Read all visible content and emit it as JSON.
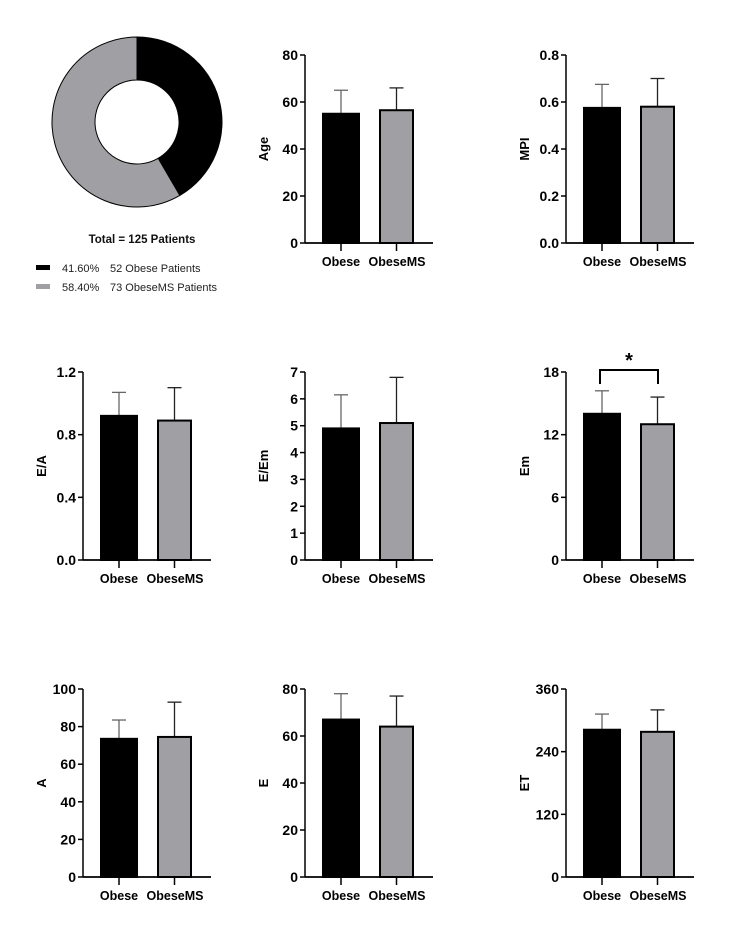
{
  "colors": {
    "obese": "#000000",
    "obeseMS": "#a0a0a4",
    "outline": "#000000"
  },
  "chart_data": [
    {
      "type": "pie",
      "style": "donut",
      "title": "Total = 125 Patients",
      "slices": [
        {
          "label": "52 Obese Patients",
          "percent_label": "41.60%",
          "value": 52,
          "color": "#000000"
        },
        {
          "label": "73 ObeseMS Patients",
          "percent_label": "58.40%",
          "value": 73,
          "color": "#a0a0a4"
        }
      ],
      "legend": "bottom-left"
    },
    {
      "type": "bar",
      "ylabel": "Age",
      "categories": [
        "Obese",
        "ObeseMS"
      ],
      "values": [
        55,
        56.5
      ],
      "error_upper": [
        65,
        66
      ],
      "ylim": [
        0,
        80
      ],
      "ticks": [
        "0",
        "20",
        "40",
        "60",
        "80"
      ],
      "tick_values": [
        0,
        20,
        40,
        60,
        80
      ]
    },
    {
      "type": "bar",
      "ylabel": "MPI",
      "categories": [
        "Obese",
        "ObeseMS"
      ],
      "values": [
        0.575,
        0.58
      ],
      "error_upper": [
        0.675,
        0.7
      ],
      "ylim": [
        0,
        0.8
      ],
      "ticks": [
        "0.0",
        "0.2",
        "0.4",
        "0.6",
        "0.8"
      ],
      "tick_values": [
        0,
        0.2,
        0.4,
        0.6,
        0.8
      ]
    },
    {
      "type": "bar",
      "ylabel": "E/A",
      "categories": [
        "Obese",
        "ObeseMS"
      ],
      "values": [
        0.92,
        0.89
      ],
      "error_upper": [
        1.07,
        1.1
      ],
      "ylim": [
        0,
        1.2
      ],
      "ticks": [
        "0.0",
        "0.4",
        "0.8",
        "1.2"
      ],
      "tick_values": [
        0,
        0.4,
        0.8,
        1.2
      ]
    },
    {
      "type": "bar",
      "ylabel": "E/Em",
      "categories": [
        "Obese",
        "ObeseMS"
      ],
      "values": [
        4.9,
        5.1
      ],
      "error_upper": [
        6.15,
        6.8
      ],
      "ylim": [
        0,
        7
      ],
      "ticks": [
        "0",
        "1",
        "2",
        "3",
        "4",
        "5",
        "6",
        "7"
      ],
      "tick_values": [
        0,
        1,
        2,
        3,
        4,
        5,
        6,
        7
      ]
    },
    {
      "type": "bar",
      "ylabel": "Em",
      "categories": [
        "Obese",
        "ObeseMS"
      ],
      "values": [
        14.0,
        13.0
      ],
      "error_upper": [
        16.2,
        15.6
      ],
      "ylim": [
        0,
        18
      ],
      "ticks": [
        "0",
        "6",
        "12",
        "18"
      ],
      "tick_values": [
        0,
        6,
        12,
        18
      ],
      "significance": "*"
    },
    {
      "type": "bar",
      "ylabel": "A",
      "categories": [
        "Obese",
        "ObeseMS"
      ],
      "values": [
        73.5,
        74.5
      ],
      "error_upper": [
        83.5,
        93
      ],
      "ylim": [
        0,
        100
      ],
      "ticks": [
        "0",
        "20",
        "40",
        "60",
        "80",
        "100"
      ],
      "tick_values": [
        0,
        20,
        40,
        60,
        80,
        100
      ]
    },
    {
      "type": "bar",
      "ylabel": "E",
      "categories": [
        "Obese",
        "ObeseMS"
      ],
      "values": [
        67,
        64
      ],
      "error_upper": [
        78,
        77
      ],
      "ylim": [
        0,
        80
      ],
      "ticks": [
        "0",
        "20",
        "40",
        "60",
        "80"
      ],
      "tick_values": [
        0,
        20,
        40,
        60,
        80
      ]
    },
    {
      "type": "bar",
      "ylabel": "ET",
      "categories": [
        "Obese",
        "ObeseMS"
      ],
      "values": [
        282,
        278
      ],
      "error_upper": [
        312,
        320
      ],
      "ylim": [
        0,
        360
      ],
      "ticks": [
        "0",
        "120",
        "240",
        "360"
      ],
      "tick_values": [
        0,
        120,
        240,
        360
      ]
    }
  ]
}
